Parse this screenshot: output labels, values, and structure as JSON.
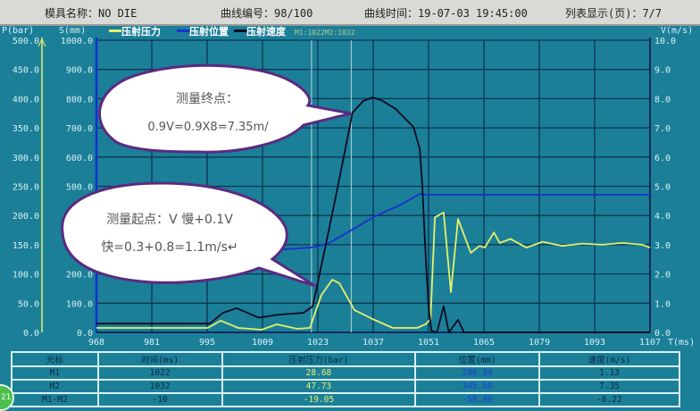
{
  "header": {
    "mold_name": "模具名称：NO DIE",
    "curve_number": "曲线编号：98/100",
    "curve_time": "曲线时间：19-07-03 19:45:00",
    "list_display": "列表显示(页)：7/7"
  },
  "legend": {
    "items": [
      {
        "label": "压射压力",
        "color": "#e6f06a"
      },
      {
        "label": "压射位置",
        "color": "#1a2fd0"
      },
      {
        "label": "压射速度",
        "color": "#0b0b20"
      }
    ],
    "cursor_readout": "M1:1022M2:1032"
  },
  "callouts": {
    "end_point": {
      "line1": "测量终点：",
      "line2": "0.9V=0.9X8=7.35m/"
    },
    "start_point": {
      "line1": "测量起点：V 慢+0.1V",
      "line2": "快=0.3+0.8=1.1m/s↵"
    }
  },
  "chart_data": {
    "type": "line",
    "xlabel": "T(ms)",
    "xlim": [
      968,
      1107
    ],
    "x_ticks": [
      "968",
      "981",
      "995",
      "1009",
      "1023",
      "1037",
      "1051",
      "1065",
      "1079",
      "1093",
      "1107"
    ],
    "axes": {
      "pressure": {
        "label": "P(bar)",
        "ylim": [
          0,
          500
        ],
        "ticks": [
          "500.0",
          "450.0",
          "400.0",
          "350.0",
          "300.0",
          "250.0",
          "200.0",
          "150.0",
          "100.0",
          "50.0",
          "0.0"
        ]
      },
      "position": {
        "label": "S(mm)",
        "ylim": [
          0,
          1000
        ],
        "ticks": [
          "1000.0",
          "900.0",
          "800.0",
          "700.0",
          "600.0",
          "500.0",
          "400.0",
          "300.0",
          "200.0",
          "100.0",
          "0.0"
        ]
      },
      "velocity": {
        "label": "V(m/s)",
        "ylim": [
          0,
          10
        ],
        "ticks": [
          "10.0",
          "9.0",
          "8.0",
          "7.0",
          "6.0",
          "5.0",
          "4.0",
          "3.0",
          "2.0",
          "1.0",
          "0.0"
        ]
      }
    },
    "grid": true,
    "cursors": [
      1022,
      1032
    ],
    "series": [
      {
        "name": "压射压力",
        "axis": "pressure",
        "color": "#e6f06a",
        "points": [
          [
            968,
            7.6
          ],
          [
            982,
            7.6
          ],
          [
            996,
            7.6
          ],
          [
            999.2,
            20
          ],
          [
            1003.6,
            7.6
          ],
          [
            1009.5,
            4.6
          ],
          [
            1013.3,
            13.8
          ],
          [
            1018.4,
            6.1
          ],
          [
            1021.6,
            7.6
          ],
          [
            1024.5,
            64
          ],
          [
            1027.2,
            90
          ],
          [
            1029,
            84
          ],
          [
            1032.8,
            38
          ],
          [
            1037.3,
            23
          ],
          [
            1042.4,
            7.6
          ],
          [
            1048.5,
            7.6
          ],
          [
            1050.7,
            14
          ],
          [
            1051.9,
            23
          ],
          [
            1053,
            197
          ],
          [
            1055.2,
            205
          ],
          [
            1057,
            69
          ],
          [
            1058.8,
            194
          ],
          [
            1062,
            136
          ],
          [
            1064.2,
            148
          ],
          [
            1065.5,
            145
          ],
          [
            1067.8,
            171
          ],
          [
            1069.3,
            153
          ],
          [
            1072,
            160
          ],
          [
            1076,
            145
          ],
          [
            1080,
            155
          ],
          [
            1085,
            148
          ],
          [
            1090,
            152
          ],
          [
            1095,
            150
          ],
          [
            1100,
            153
          ],
          [
            1105,
            150
          ],
          [
            1107,
            145
          ]
        ]
      },
      {
        "name": "压射位置",
        "axis": "position",
        "color": "#1a2fd0",
        "points": [
          [
            968,
            284
          ],
          [
            1014.9,
            284
          ],
          [
            1022.3,
            291
          ],
          [
            1026.1,
            303
          ],
          [
            1031.9,
            349
          ],
          [
            1038,
            398
          ],
          [
            1044,
            434
          ],
          [
            1049.2,
            474
          ],
          [
            1050.7,
            471
          ],
          [
            1107,
            471
          ]
        ]
      },
      {
        "name": "压射速度",
        "axis": "velocity",
        "color": "#0b0b20",
        "points": [
          [
            968,
            0.3
          ],
          [
            996.5,
            0.3
          ],
          [
            999.8,
            0.67
          ],
          [
            1003.2,
            0.83
          ],
          [
            1008.8,
            0.5
          ],
          [
            1013.3,
            0.6
          ],
          [
            1020,
            0.67
          ],
          [
            1022.3,
            0.89
          ],
          [
            1023.4,
            1.59
          ],
          [
            1026.1,
            3.33
          ],
          [
            1029,
            5.26
          ],
          [
            1032.3,
            7.52
          ],
          [
            1035,
            7.92
          ],
          [
            1037.3,
            8.04
          ],
          [
            1039.5,
            7.95
          ],
          [
            1043.1,
            7.65
          ],
          [
            1047.6,
            7.03
          ],
          [
            1049.2,
            6.27
          ],
          [
            1049.8,
            5.05
          ],
          [
            1050.7,
            2.51
          ],
          [
            1051.4,
            0.89
          ],
          [
            1052.1,
            0.06
          ],
          [
            1053.5,
            0
          ],
          [
            1055.2,
            0.9
          ],
          [
            1056.5,
            0
          ],
          [
            1058.8,
            0.43
          ],
          [
            1060.3,
            0
          ],
          [
            1107,
            0
          ]
        ]
      }
    ]
  },
  "table": {
    "headers": [
      "光标",
      "时间(ms)",
      "压射压力(bar)",
      "位置(mm)",
      "速度(m/s)"
    ],
    "rows": [
      [
        "M1",
        "1022",
        "28.68",
        "286.80",
        "1.13"
      ],
      [
        "M2",
        "1032",
        "47.73",
        "345.60",
        "7.35"
      ],
      [
        "M1-M2",
        "-10",
        "-19.05",
        "-58.80",
        "-6.22"
      ]
    ]
  },
  "badge": "21"
}
